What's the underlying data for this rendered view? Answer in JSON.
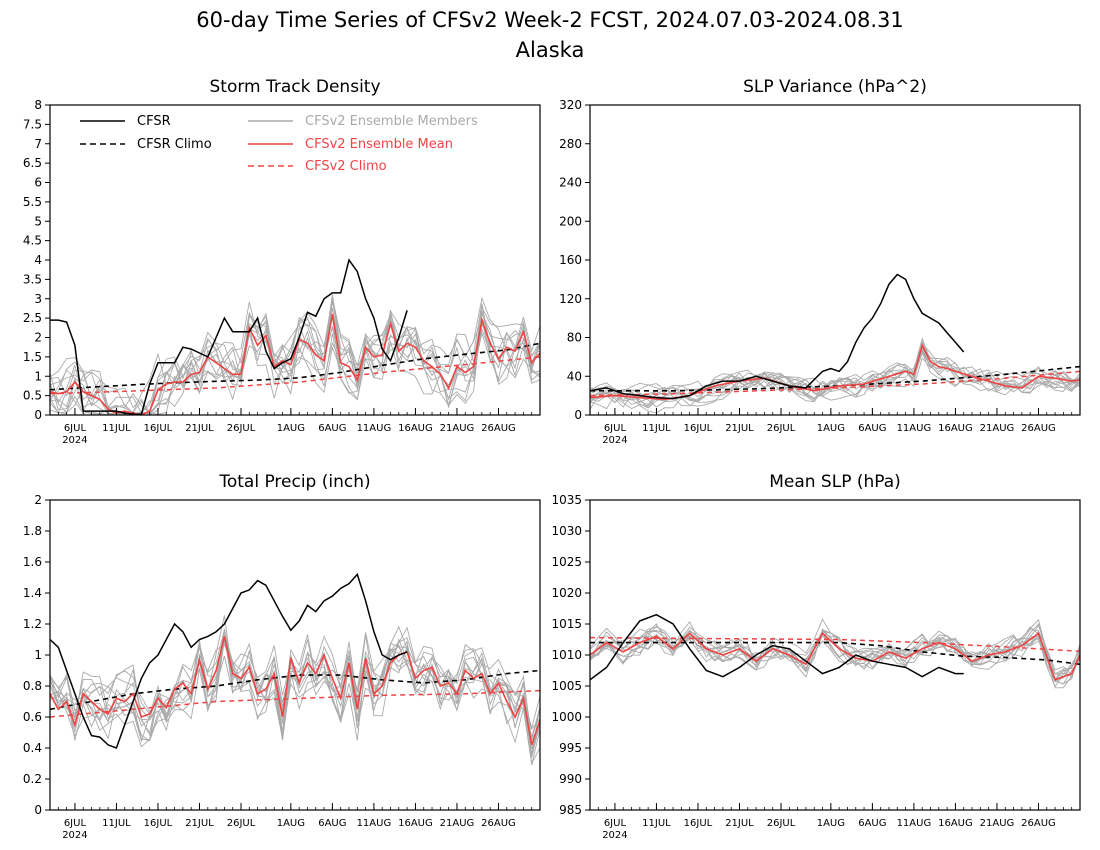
{
  "figure": {
    "title": "60-day Time Series of CFSv2 Week-2 FCST, 2024.07.03-2024.08.31",
    "subtitle": "Alaska"
  },
  "colors": {
    "cfsr": "#000000",
    "ensemble_members": "#aaaaaa",
    "ensemble_mean": "#ee4444",
    "cfsv2_climo": "#ee4444"
  },
  "legend": [
    {
      "label": "CFSR",
      "style": "solid",
      "color": "#000000"
    },
    {
      "label": "CFSR Climo",
      "style": "dashed",
      "color": "#000000"
    },
    {
      "label": "CFSv2 Ensemble Members",
      "style": "solid",
      "color": "#aaaaaa"
    },
    {
      "label": "CFSv2 Ensemble Mean",
      "style": "solid",
      "color": "#ee4444"
    },
    {
      "label": "CFSv2 Climo",
      "style": "dashed",
      "color": "#ee4444"
    }
  ],
  "x_axis": {
    "tick_labels": [
      "6JUL",
      "11JUL",
      "16JUL",
      "21JUL",
      "26JUL",
      "1AUG",
      "6AUG",
      "11AUG",
      "16AUG",
      "21AUG",
      "26AUG"
    ],
    "tick_days": [
      3,
      8,
      13,
      18,
      23,
      29,
      34,
      39,
      44,
      49,
      54
    ],
    "year_label": "2024",
    "range_days": [
      0,
      59
    ]
  },
  "chart_data": [
    {
      "type": "line",
      "title": "Storm Track Density",
      "ylim": [
        0,
        8
      ],
      "yticks": [
        "0",
        "0.5",
        "1",
        "1.5",
        "2",
        "2.5",
        "3",
        "3.5",
        "4",
        "4.5",
        "5",
        "5.5",
        "6",
        "6.5",
        "7",
        "7.5",
        "8"
      ],
      "show_legend": true,
      "cfsr": {
        "x": [
          0,
          1,
          2,
          3,
          4,
          5,
          6,
          7,
          8,
          9,
          10,
          11,
          12,
          13,
          14,
          15,
          16,
          17,
          18,
          19,
          20,
          21,
          22,
          23,
          24,
          25,
          26,
          27,
          28,
          29,
          30,
          31,
          32,
          33,
          34,
          35,
          36,
          37,
          38,
          39,
          40,
          41,
          42,
          43
        ],
        "y": [
          2.45,
          2.45,
          2.4,
          1.8,
          0.1,
          0.1,
          0.1,
          0.1,
          0.1,
          0.05,
          0.02,
          0.02,
          0.8,
          1.35,
          1.35,
          1.35,
          1.75,
          1.7,
          1.6,
          1.5,
          2.0,
          2.5,
          2.15,
          2.15,
          2.15,
          2.5,
          1.65,
          1.2,
          1.35,
          1.45,
          2.0,
          2.65,
          2.55,
          3.0,
          3.15,
          3.15,
          4.0,
          3.7,
          3.0,
          2.5,
          1.7,
          1.4,
          2.0,
          2.7
        ]
      },
      "cfsr_climo": {
        "x": [
          0,
          5,
          10,
          15,
          20,
          25,
          30,
          35,
          40,
          45,
          50,
          55,
          59
        ],
        "y": [
          0.65,
          0.72,
          0.78,
          0.83,
          0.87,
          0.9,
          0.96,
          1.1,
          1.28,
          1.45,
          1.57,
          1.68,
          1.85
        ]
      },
      "ens_mean": {
        "x": [
          0,
          1,
          2,
          3,
          4,
          5,
          6,
          7,
          8,
          9,
          10,
          11,
          12,
          13,
          14,
          15,
          16,
          17,
          18,
          19,
          20,
          21,
          22,
          23,
          24,
          25,
          26,
          27,
          28,
          29,
          30,
          31,
          32,
          33,
          34,
          35,
          36,
          37,
          38,
          39,
          40,
          41,
          42,
          43,
          44,
          45,
          46,
          47,
          48,
          49,
          50,
          51,
          52,
          53,
          54,
          55,
          56,
          57,
          58,
          59
        ],
        "y": [
          0.6,
          0.55,
          0.6,
          0.85,
          0.6,
          0.5,
          0.4,
          0.15,
          0.05,
          0.1,
          0.05,
          0.0,
          0.1,
          0.65,
          0.8,
          0.85,
          0.85,
          1.05,
          1.1,
          1.5,
          1.35,
          1.2,
          1.05,
          1.05,
          2.25,
          1.8,
          2.05,
          1.25,
          1.4,
          1.3,
          1.95,
          1.85,
          1.55,
          1.4,
          2.6,
          1.35,
          1.25,
          0.9,
          1.75,
          1.5,
          1.55,
          2.35,
          1.65,
          1.85,
          1.75,
          1.4,
          1.25,
          1.05,
          0.7,
          1.25,
          1.1,
          1.25,
          2.45,
          1.85,
          1.45,
          1.75,
          1.65,
          2.15,
          1.35,
          1.6
        ]
      },
      "cfsv2_climo": {
        "x": [
          0,
          10,
          20,
          30,
          40,
          50,
          59
        ],
        "y": [
          0.55,
          0.62,
          0.7,
          0.85,
          1.1,
          1.3,
          1.5
        ]
      },
      "members": {
        "count": 12,
        "spread": 0.85,
        "ceil": 5.3
      }
    },
    {
      "type": "line",
      "title": "SLP Variance (hPa^2)",
      "ylim": [
        0,
        320
      ],
      "yticks": [
        "0",
        "40",
        "80",
        "120",
        "160",
        "200",
        "240",
        "280",
        "320"
      ],
      "show_legend": false,
      "cfsr": {
        "x": [
          0,
          2,
          4,
          6,
          8,
          10,
          12,
          14,
          16,
          18,
          20,
          22,
          24,
          26,
          28,
          29,
          30,
          31,
          32,
          33,
          34,
          35,
          36,
          37,
          38,
          39,
          40,
          41,
          42,
          43,
          44,
          45
        ],
        "y": [
          25,
          28,
          22,
          20,
          18,
          17,
          20,
          30,
          35,
          35,
          40,
          35,
          30,
          28,
          45,
          48,
          45,
          55,
          75,
          90,
          100,
          115,
          135,
          145,
          140,
          120,
          105,
          100,
          95,
          85,
          75,
          65
        ]
      },
      "cfsr_climo": {
        "x": [
          0,
          10,
          20,
          30,
          40,
          50,
          59
        ],
        "y": [
          25,
          25,
          27,
          30,
          35,
          42,
          50
        ]
      },
      "ens_mean": {
        "x": [
          0,
          3,
          6,
          9,
          12,
          15,
          18,
          21,
          24,
          27,
          30,
          33,
          36,
          38,
          39,
          40,
          41,
          42,
          43,
          44,
          46,
          48,
          50,
          52,
          54,
          56,
          58,
          59
        ],
        "y": [
          18,
          20,
          18,
          16,
          20,
          30,
          35,
          38,
          30,
          25,
          30,
          32,
          40,
          45,
          42,
          72,
          55,
          50,
          48,
          45,
          40,
          35,
          30,
          28,
          40,
          38,
          35,
          36
        ]
      },
      "cfsv2_climo": {
        "x": [
          0,
          10,
          20,
          30,
          40,
          50,
          59
        ],
        "y": [
          20,
          22,
          25,
          28,
          32,
          38,
          45
        ]
      },
      "members": {
        "count": 12,
        "spread": 14,
        "ceil": 85
      }
    },
    {
      "type": "line",
      "title": "Total Precip (inch)",
      "ylim": [
        0,
        2
      ],
      "yticks": [
        "0",
        "0.2",
        "0.4",
        "0.6",
        "0.8",
        "1",
        "1.2",
        "1.4",
        "1.6",
        "1.8",
        "2"
      ],
      "show_legend": false,
      "cfsr": {
        "x": [
          0,
          1,
          2,
          3,
          4,
          5,
          6,
          7,
          8,
          9,
          10,
          11,
          12,
          13,
          14,
          15,
          16,
          17,
          18,
          19,
          20,
          21,
          22,
          23,
          24,
          25,
          26,
          27,
          28,
          29,
          30,
          31,
          32,
          33,
          34,
          35,
          36,
          37,
          38,
          39,
          40,
          41,
          42,
          43
        ],
        "y": [
          1.1,
          1.05,
          0.9,
          0.75,
          0.6,
          0.48,
          0.47,
          0.42,
          0.4,
          0.55,
          0.7,
          0.85,
          0.95,
          1.0,
          1.1,
          1.2,
          1.15,
          1.05,
          1.1,
          1.12,
          1.15,
          1.2,
          1.3,
          1.4,
          1.42,
          1.48,
          1.45,
          1.35,
          1.25,
          1.16,
          1.22,
          1.32,
          1.28,
          1.35,
          1.38,
          1.43,
          1.46,
          1.52,
          1.35,
          1.15,
          1.0,
          0.97,
          1.0,
          1.02
        ]
      },
      "cfsr_climo": {
        "x": [
          0,
          5,
          10,
          15,
          20,
          25,
          30,
          35,
          40,
          45,
          50,
          55,
          59
        ],
        "y": [
          0.65,
          0.7,
          0.75,
          0.78,
          0.8,
          0.84,
          0.87,
          0.87,
          0.84,
          0.82,
          0.84,
          0.88,
          0.9
        ]
      },
      "ens_mean": {
        "x": [
          0,
          1,
          2,
          3,
          4,
          5,
          6,
          7,
          8,
          9,
          10,
          11,
          12,
          13,
          14,
          15,
          16,
          17,
          18,
          19,
          20,
          21,
          22,
          23,
          24,
          25,
          26,
          27,
          28,
          29,
          30,
          31,
          32,
          33,
          34,
          35,
          36,
          37,
          38,
          39,
          40,
          41,
          42,
          43,
          44,
          45,
          46,
          47,
          48,
          49,
          50,
          51,
          52,
          53,
          54,
          55,
          56,
          57,
          58,
          59
        ],
        "y": [
          0.75,
          0.65,
          0.7,
          0.55,
          0.75,
          0.7,
          0.65,
          0.62,
          0.72,
          0.7,
          0.75,
          0.6,
          0.62,
          0.72,
          0.66,
          0.78,
          0.82,
          0.75,
          0.97,
          0.78,
          0.9,
          1.12,
          0.88,
          0.85,
          0.92,
          0.75,
          0.78,
          0.88,
          0.6,
          0.98,
          0.82,
          0.95,
          0.88,
          1.0,
          0.85,
          0.72,
          0.95,
          0.65,
          0.98,
          0.75,
          0.8,
          0.95,
          1.0,
          1.02,
          0.85,
          0.9,
          0.92,
          0.8,
          0.82,
          0.75,
          0.9,
          0.85,
          0.88,
          0.75,
          0.82,
          0.7,
          0.6,
          0.72,
          0.42,
          0.58
        ]
      },
      "cfsv2_climo": {
        "x": [
          0,
          10,
          20,
          30,
          40,
          50,
          59
        ],
        "y": [
          0.6,
          0.65,
          0.7,
          0.72,
          0.74,
          0.75,
          0.77
        ]
      },
      "members": {
        "count": 12,
        "spread": 0.2,
        "ceil": 1.45
      }
    },
    {
      "type": "line",
      "title": "Mean SLP (hPa)",
      "ylim": [
        985,
        1035
      ],
      "yticks": [
        "985",
        "990",
        "995",
        "1000",
        "1005",
        "1010",
        "1015",
        "1020",
        "1025",
        "1030",
        "1035"
      ],
      "show_legend": false,
      "cfsr": {
        "x": [
          0,
          2,
          4,
          6,
          8,
          10,
          12,
          14,
          16,
          18,
          20,
          22,
          24,
          26,
          28,
          30,
          32,
          34,
          36,
          38,
          40,
          42,
          44,
          45
        ],
        "y": [
          1006,
          1008,
          1012,
          1015.5,
          1016.5,
          1015,
          1011,
          1007.5,
          1006.5,
          1008,
          1010,
          1011.5,
          1011,
          1009,
          1007,
          1008,
          1010,
          1009,
          1008.5,
          1008,
          1006.5,
          1008,
          1007,
          1007
        ]
      },
      "cfsr_climo": {
        "x": [
          0,
          10,
          20,
          30,
          35,
          40,
          45,
          50,
          55,
          59
        ],
        "y": [
          1012,
          1012,
          1012,
          1012,
          1011.5,
          1010.5,
          1009.8,
          1009.6,
          1009.2,
          1008.5
        ]
      },
      "ens_mean": {
        "x": [
          0,
          2,
          4,
          6,
          8,
          10,
          12,
          14,
          16,
          18,
          20,
          22,
          24,
          26,
          28,
          30,
          32,
          34,
          36,
          38,
          40,
          42,
          44,
          46,
          48,
          50,
          52,
          54,
          56,
          58,
          59
        ],
        "y": [
          1010,
          1012,
          1010.5,
          1012,
          1013,
          1011,
          1013.5,
          1011,
          1010,
          1011,
          1009,
          1011,
          1010,
          1008.5,
          1013.5,
          1011,
          1009.5,
          1009,
          1010.5,
          1009.5,
          1011,
          1012,
          1011,
          1009,
          1010,
          1010.5,
          1011.5,
          1013.5,
          1006,
          1007,
          1010
        ]
      },
      "cfsv2_climo": {
        "x": [
          0,
          10,
          20,
          30,
          40,
          50,
          59
        ],
        "y": [
          1012.8,
          1012.7,
          1012.6,
          1012.5,
          1012,
          1011.3,
          1010.6
        ]
      },
      "members": {
        "count": 12,
        "spread": 2.2,
        "ceil": 1020
      }
    }
  ]
}
